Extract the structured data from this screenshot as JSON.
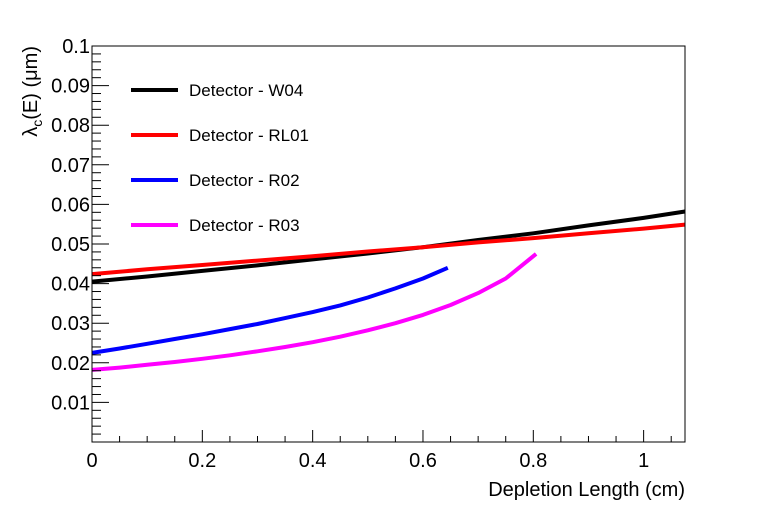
{
  "chart_data": {
    "type": "line",
    "title": "",
    "xlabel": "Depletion Length (cm)",
    "ylabel_main": "λ",
    "ylabel_sub": "c",
    "ylabel_rest": "(E) (μm)",
    "xlim": [
      0,
      1.075
    ],
    "ylim": [
      0,
      0.1
    ],
    "x_ticks": [
      {
        "value": 0,
        "label": "0"
      },
      {
        "value": 0.2,
        "label": "0.2"
      },
      {
        "value": 0.4,
        "label": "0.4"
      },
      {
        "value": 0.6,
        "label": "0.6"
      },
      {
        "value": 0.8,
        "label": "0.8"
      },
      {
        "value": 1.0,
        "label": "1"
      }
    ],
    "y_ticks": [
      {
        "value": 0.01,
        "label": "0.01"
      },
      {
        "value": 0.02,
        "label": "0.02"
      },
      {
        "value": 0.03,
        "label": "0.03"
      },
      {
        "value": 0.04,
        "label": "0.04"
      },
      {
        "value": 0.05,
        "label": "0.05"
      },
      {
        "value": 0.06,
        "label": "0.06"
      },
      {
        "value": 0.07,
        "label": "0.07"
      },
      {
        "value": 0.08,
        "label": "0.08"
      },
      {
        "value": 0.09,
        "label": "0.09"
      },
      {
        "value": 0.1,
        "label": "0.1"
      }
    ],
    "legend_position": "top-left",
    "series": [
      {
        "name": "Detector - W04",
        "color": "#000000",
        "x": [
          0,
          0.1,
          0.2,
          0.3,
          0.4,
          0.5,
          0.6,
          0.7,
          0.8,
          0.9,
          1.0,
          1.075
        ],
        "y": [
          0.0405,
          0.0418,
          0.0432,
          0.0446,
          0.0461,
          0.0476,
          0.0492,
          0.051,
          0.0527,
          0.0547,
          0.0566,
          0.0582
        ]
      },
      {
        "name": "Detector - RL01",
        "color": "#ff0000",
        "x": [
          0,
          0.1,
          0.2,
          0.3,
          0.4,
          0.5,
          0.6,
          0.7,
          0.8,
          0.9,
          1.0,
          1.075
        ],
        "y": [
          0.0424,
          0.0436,
          0.0447,
          0.0458,
          0.0469,
          0.0481,
          0.0492,
          0.0504,
          0.0515,
          0.0527,
          0.0539,
          0.0549
        ]
      },
      {
        "name": "Detector - R02",
        "color": "#0000ff",
        "x": [
          0,
          0.05,
          0.1,
          0.15,
          0.2,
          0.25,
          0.3,
          0.35,
          0.4,
          0.45,
          0.5,
          0.55,
          0.6,
          0.645
        ],
        "y": [
          0.0225,
          0.0236,
          0.0248,
          0.026,
          0.0272,
          0.0285,
          0.0298,
          0.0313,
          0.0328,
          0.0345,
          0.0365,
          0.0388,
          0.0413,
          0.044
        ]
      },
      {
        "name": "Detector - R03",
        "color": "#ff00ff",
        "x": [
          0,
          0.05,
          0.1,
          0.15,
          0.2,
          0.25,
          0.3,
          0.35,
          0.4,
          0.45,
          0.5,
          0.55,
          0.6,
          0.65,
          0.7,
          0.75,
          0.805
        ],
        "y": [
          0.0182,
          0.0188,
          0.0195,
          0.0202,
          0.021,
          0.0219,
          0.0229,
          0.024,
          0.0252,
          0.0266,
          0.0282,
          0.03,
          0.0321,
          0.0346,
          0.0376,
          0.0413,
          0.0475
        ]
      }
    ]
  }
}
